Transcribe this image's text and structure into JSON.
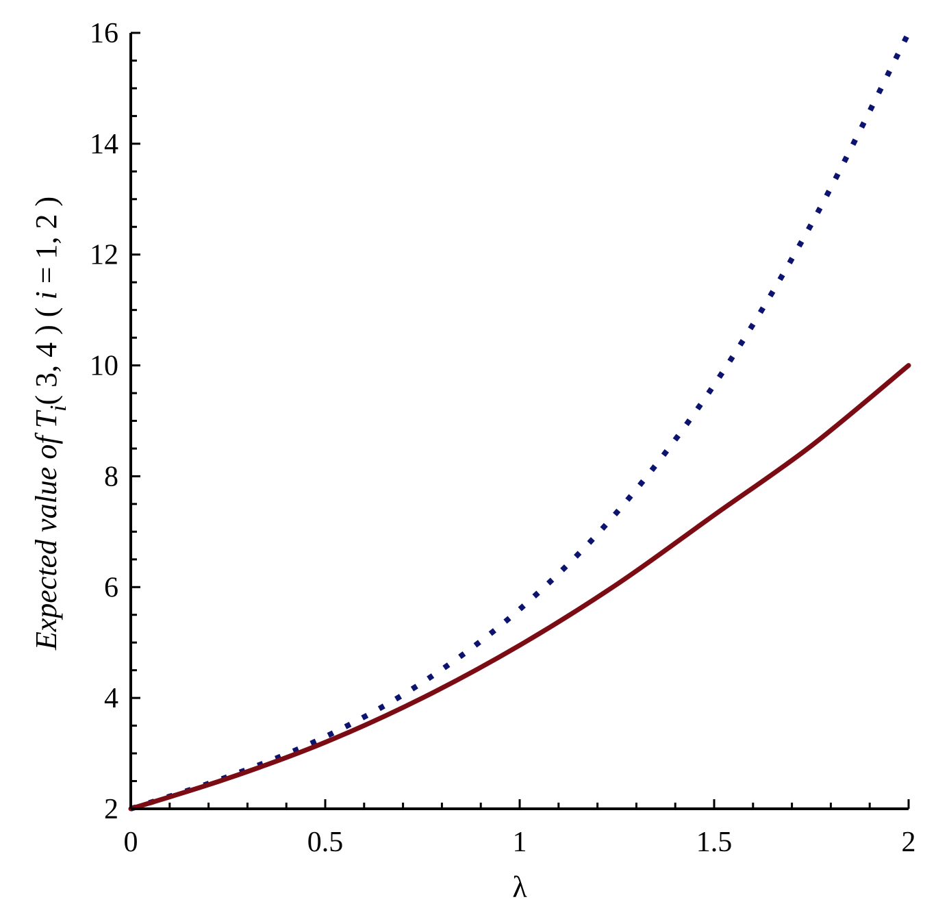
{
  "chart_data": {
    "type": "line",
    "title": "",
    "xlabel": "λ",
    "ylabel": {
      "prefix": "Expected value of ",
      "var": "T",
      "sub": "i",
      "args": "( 3, 4 ) ( ",
      "index_var": "i",
      "index_rest": " = 1, 2 )"
    },
    "xlim": [
      0,
      2
    ],
    "ylim": [
      2,
      16
    ],
    "x_ticks": [
      {
        "value": 0,
        "label": "0"
      },
      {
        "value": 0.5,
        "label": "0.5"
      },
      {
        "value": 1,
        "label": "1"
      },
      {
        "value": 1.5,
        "label": "1.5"
      },
      {
        "value": 2,
        "label": "2"
      }
    ],
    "y_ticks": [
      {
        "value": 2,
        "label": "2"
      },
      {
        "value": 4,
        "label": "4"
      },
      {
        "value": 6,
        "label": "6"
      },
      {
        "value": 8,
        "label": "8"
      },
      {
        "value": 10,
        "label": "10"
      },
      {
        "value": 12,
        "label": "12"
      },
      {
        "value": 14,
        "label": "14"
      },
      {
        "value": 16,
        "label": "16"
      }
    ],
    "grid": false,
    "legend": "none",
    "series": [
      {
        "style": "dotted",
        "color": "#0d1470",
        "x": [
          0,
          0.25,
          0.5,
          0.75,
          1.0,
          1.25,
          1.5,
          1.75,
          2.0
        ],
        "y": [
          2.0,
          2.58,
          3.3,
          4.28,
          5.6,
          7.35,
          9.65,
          12.55,
          16.0
        ]
      },
      {
        "style": "solid",
        "color": "#7b0c14",
        "x": [
          0,
          0.25,
          0.5,
          0.75,
          1.0,
          1.25,
          1.5,
          1.75,
          2.0
        ],
        "y": [
          2.0,
          2.55,
          3.2,
          4.0,
          4.95,
          6.05,
          7.3,
          8.55,
          10.0
        ]
      }
    ]
  }
}
